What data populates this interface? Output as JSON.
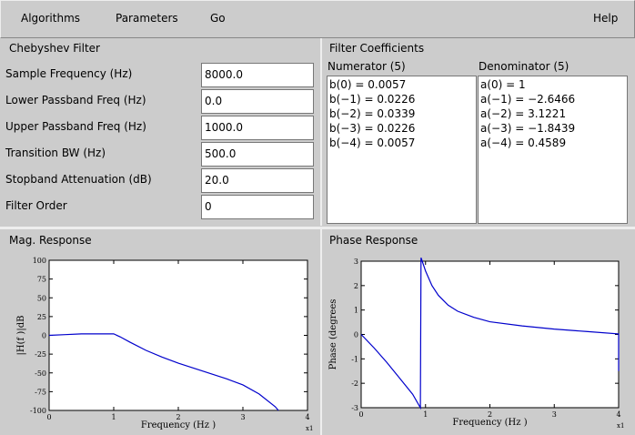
{
  "menu": {
    "items": [
      "Algorithms",
      "Parameters",
      "Go"
    ],
    "help": "Help"
  },
  "filter_panel": {
    "title": "Chebyshev Filter",
    "fields": [
      {
        "label": "Sample Frequency (Hz)",
        "value": "8000.0"
      },
      {
        "label": "Lower Passband Freq (Hz)",
        "value": "0.0"
      },
      {
        "label": "Upper Passband Freq (Hz)",
        "value": "1000.0"
      },
      {
        "label": "Transition BW (Hz)",
        "value": "500.0"
      },
      {
        "label": "Stopband Attenuation (dB)",
        "value": "20.0"
      },
      {
        "label": "Filter Order",
        "value": "0"
      }
    ]
  },
  "coefficients_panel": {
    "title": "Filter Coefficients",
    "numerator": {
      "title": "Numerator (5)",
      "items": [
        "b(0) = 0.0057",
        "b(−1) = 0.0226",
        "b(−2) = 0.0339",
        "b(−3) = 0.0226",
        "b(−4) = 0.0057"
      ]
    },
    "denominator": {
      "title": "Denominator (5)",
      "items": [
        "a(0) = 1",
        "a(−1) = −2.6466",
        "a(−2) = 3.1221",
        "a(−3) = −1.8439",
        "a(−4) = 0.4589"
      ]
    }
  },
  "mag_response": {
    "title": "Mag. Response",
    "chart": {
      "type": "line",
      "x_label": "Frequency (Hz )",
      "y_label": "|H(f )|dB",
      "multiplier": "x1",
      "color": "#0000cc",
      "xlim": [
        0,
        4
      ],
      "xticks": [
        0,
        1,
        2,
        3,
        4
      ],
      "ylim": [
        -100,
        100
      ],
      "yticks": [
        -100,
        -75,
        -50,
        -25,
        0,
        25,
        50,
        75,
        100
      ],
      "x": [
        0,
        0.25,
        0.5,
        0.75,
        1.0,
        1.1,
        1.25,
        1.5,
        1.75,
        2.0,
        2.25,
        2.5,
        2.75,
        3.0,
        3.25,
        3.5,
        3.55
      ],
      "values": [
        0,
        1,
        2,
        2,
        2,
        -2,
        -9,
        -20,
        -29,
        -37,
        -44,
        -51,
        -58,
        -66,
        -78,
        -95,
        -100
      ]
    }
  },
  "phase_response": {
    "title": "Phase Response",
    "chart": {
      "type": "line",
      "x_label": "Frequency (Hz )",
      "y_label": "Phase (degrees",
      "multiplier": "x1",
      "color": "#0000cc",
      "xlim": [
        0,
        4
      ],
      "xticks": [
        0,
        1,
        2,
        3,
        4
      ],
      "ylim": [
        -3,
        3
      ],
      "yticks": [
        -3,
        -2,
        -1,
        0,
        1,
        2,
        3
      ],
      "x": [
        0,
        0.2,
        0.4,
        0.6,
        0.8,
        0.92,
        0.93,
        1.0,
        1.1,
        1.2,
        1.35,
        1.5,
        1.75,
        2.0,
        2.5,
        3.0,
        3.5,
        4.0,
        4.0
      ],
      "values": [
        0,
        -0.55,
        -1.15,
        -1.8,
        -2.45,
        -3.0,
        3.14,
        2.6,
        2.0,
        1.6,
        1.2,
        0.95,
        0.7,
        0.52,
        0.35,
        0.22,
        0.12,
        0.02,
        -1.5
      ]
    }
  }
}
